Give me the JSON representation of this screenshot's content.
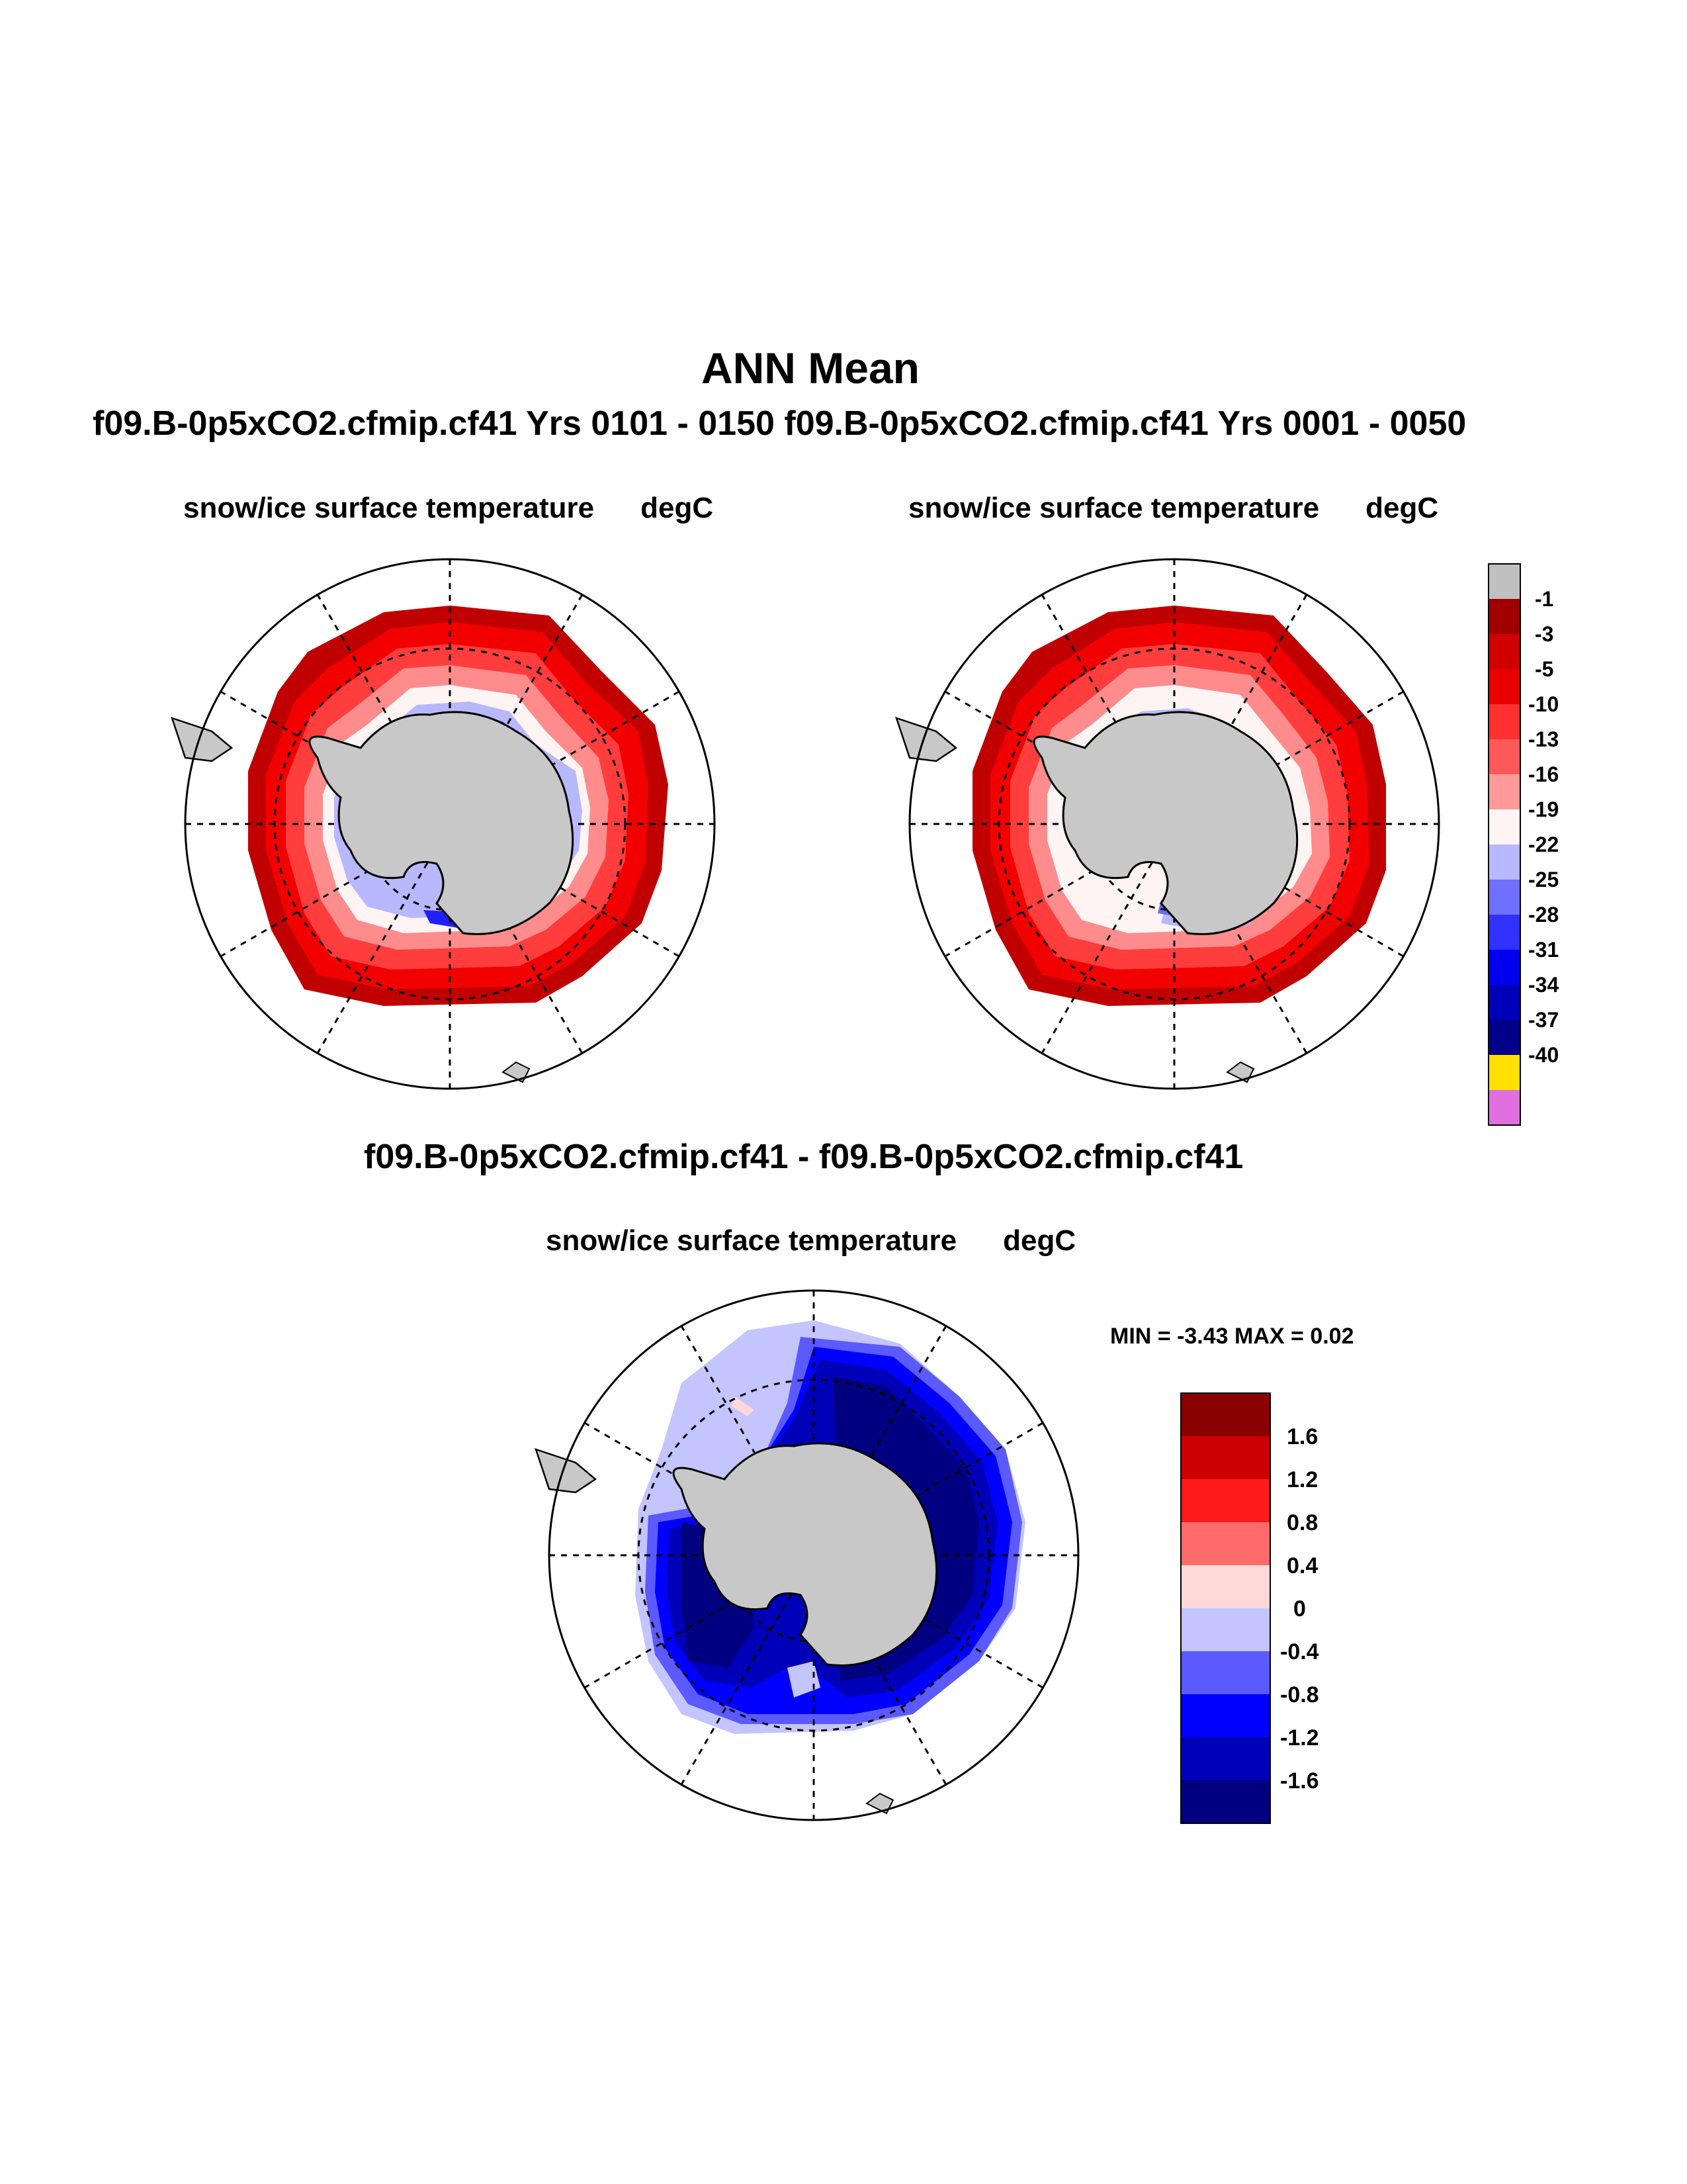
{
  "main_title": "ANN Mean",
  "subtitle": "f09.B-0p5xCO2.cfmip.cf41  Yrs 0101 - 0150 f09.B-0p5xCO2.cfmip.cf41  Yrs 0001 - 0050",
  "maps": {
    "left": {
      "variable": "snow/ice surface temperature",
      "units": "degC"
    },
    "right": {
      "variable": "snow/ice surface temperature",
      "units": "degC"
    },
    "diff": {
      "title": "f09.B-0p5xCO2.cfmip.cf41 - f09.B-0p5xCO2.cfmip.cf41",
      "variable": "snow/ice surface temperature",
      "units": "degC",
      "minmax": "MIN =  -3.43 MAX =   0.02"
    }
  },
  "legend_top": {
    "labels": [
      "-1",
      "-3",
      "-5",
      "-10",
      "-13",
      "-16",
      "-19",
      "-22",
      "-25",
      "-28",
      "-31",
      "-34",
      "-37",
      "-40"
    ],
    "colors": [
      "#c0c0c0",
      "#a00000",
      "#d00000",
      "#e80000",
      "#ff3030",
      "#ff5858",
      "#ff9a9a",
      "#fff4f4",
      "#b8b8ff",
      "#7070ff",
      "#3030ff",
      "#0000ee",
      "#0000b8",
      "#000088",
      "#ffe000",
      "#e070e0"
    ]
  },
  "legend_bottom": {
    "labels": [
      "1.6",
      "1.2",
      "0.8",
      "0.4",
      "0",
      "-0.4",
      "-0.8",
      "-1.2",
      "-1.6"
    ],
    "colors": [
      "#8b0000",
      "#cc0000",
      "#ff1a1a",
      "#ff6a6a",
      "#ffd8d8",
      "#c4c4ff",
      "#5a5aff",
      "#0000ff",
      "#0000b8",
      "#000080"
    ]
  }
}
